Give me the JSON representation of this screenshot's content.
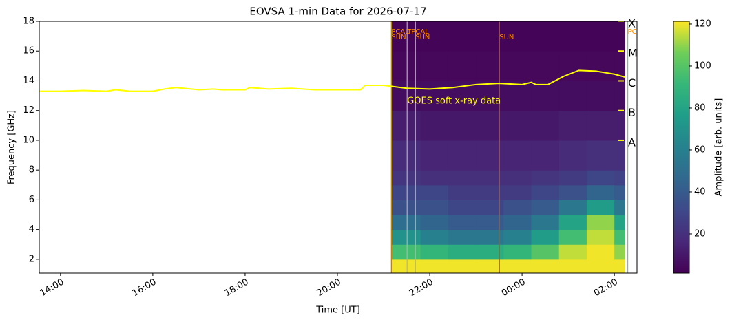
{
  "chart_data": {
    "type": "spectrogram",
    "title": "EOVSA 1-min Data for 2026-07-17",
    "xlabel": "Time [UT]",
    "ylabel": "Frequency [GHz]",
    "xlim": [
      13.54,
      26.49
    ],
    "ylim": [
      1.07,
      18
    ],
    "xticks": [
      {
        "value": 14,
        "label": "14:00"
      },
      {
        "value": 16,
        "label": "16:00"
      },
      {
        "value": 18,
        "label": "18:00"
      },
      {
        "value": 20,
        "label": "20:00"
      },
      {
        "value": 22,
        "label": "22:00"
      },
      {
        "value": 24,
        "label": "00:00"
      },
      {
        "value": 26,
        "label": "02:00"
      }
    ],
    "yticks": [
      2,
      4,
      6,
      8,
      10,
      12,
      14,
      16,
      18
    ],
    "heatmap": {
      "colormap": "viridis",
      "time_edges": [
        21.17,
        21.8,
        22.4,
        23.0,
        23.6,
        24.2,
        24.8,
        25.4,
        26.0,
        26.23
      ],
      "freq_edges": [
        1.07,
        2,
        3,
        4,
        5,
        6,
        7,
        8,
        10,
        12,
        14,
        16,
        18
      ],
      "z": [
        [
          120,
          120,
          120,
          120,
          120,
          120,
          120,
          120,
          120
        ],
        [
          95,
          90,
          85,
          85,
          90,
          100,
          115,
          120,
          110
        ],
        [
          70,
          60,
          55,
          55,
          60,
          75,
          95,
          115,
          95
        ],
        [
          50,
          45,
          40,
          40,
          45,
          55,
          80,
          110,
          80
        ],
        [
          35,
          35,
          30,
          30,
          35,
          40,
          55,
          75,
          55
        ],
        [
          30,
          30,
          25,
          25,
          25,
          30,
          35,
          45,
          40
        ],
        [
          22,
          20,
          20,
          20,
          20,
          22,
          25,
          30,
          28
        ],
        [
          18,
          15,
          15,
          15,
          15,
          15,
          18,
          20,
          20
        ],
        [
          12,
          10,
          10,
          10,
          10,
          10,
          12,
          12,
          12
        ],
        [
          6,
          6,
          6,
          6,
          6,
          6,
          6,
          6,
          6
        ],
        [
          4,
          4,
          4,
          4,
          4,
          4,
          4,
          4,
          4
        ],
        [
          3,
          3,
          3,
          3,
          3,
          3,
          3,
          3,
          3
        ]
      ],
      "clim": [
        1.3,
        121.3
      ],
      "cticks": [
        20,
        40,
        60,
        80,
        100,
        120
      ],
      "clabel": "Amplitude [arb. units]"
    },
    "goes": {
      "color": "#ffff00",
      "x": [
        13.54,
        14.0,
        14.5,
        15.0,
        15.2,
        15.5,
        16.0,
        16.25,
        16.5,
        17.0,
        17.3,
        17.5,
        18.0,
        18.1,
        18.5,
        19.0,
        19.5,
        20.0,
        20.5,
        20.6,
        21.0,
        21.5,
        22.0,
        22.5,
        23.0,
        23.5,
        24.0,
        24.2,
        24.3,
        24.56,
        24.9,
        25.23,
        25.6,
        26.0,
        26.23
      ],
      "values": [
        13.3,
        13.3,
        13.35,
        13.3,
        13.4,
        13.3,
        13.3,
        13.45,
        13.55,
        13.4,
        13.45,
        13.4,
        13.4,
        13.55,
        13.45,
        13.5,
        13.4,
        13.4,
        13.4,
        13.7,
        13.7,
        13.5,
        13.45,
        13.55,
        13.75,
        13.83,
        13.75,
        13.9,
        13.75,
        13.75,
        14.3,
        14.7,
        14.65,
        14.45,
        14.25
      ]
    },
    "annotations": [
      {
        "text": "GOES soft x-ray data",
        "x": 21.51,
        "y": 12.63
      }
    ],
    "goes_classes": [
      {
        "label": "X",
        "value": 18
      },
      {
        "label": "M",
        "value": 16
      },
      {
        "label": "C",
        "value": 14
      },
      {
        "label": "B",
        "value": 12
      },
      {
        "label": "A",
        "value": 10
      }
    ],
    "scans": [
      {
        "time": 21.17,
        "label": "PCAL",
        "color": "#b8860b"
      },
      {
        "time": 21.17,
        "label": "SUN",
        "color": "#b8860b"
      },
      {
        "time": 21.51,
        "label": "TPCAL",
        "color": "#b0b0b0"
      },
      {
        "time": 21.69,
        "label": "SUN",
        "color": "#b0b0b0"
      },
      {
        "time": 23.51,
        "label": "SUN",
        "color": "#b8560b"
      },
      {
        "time": 26.29,
        "label": "PC",
        "color": "#7fbf7f"
      }
    ]
  }
}
